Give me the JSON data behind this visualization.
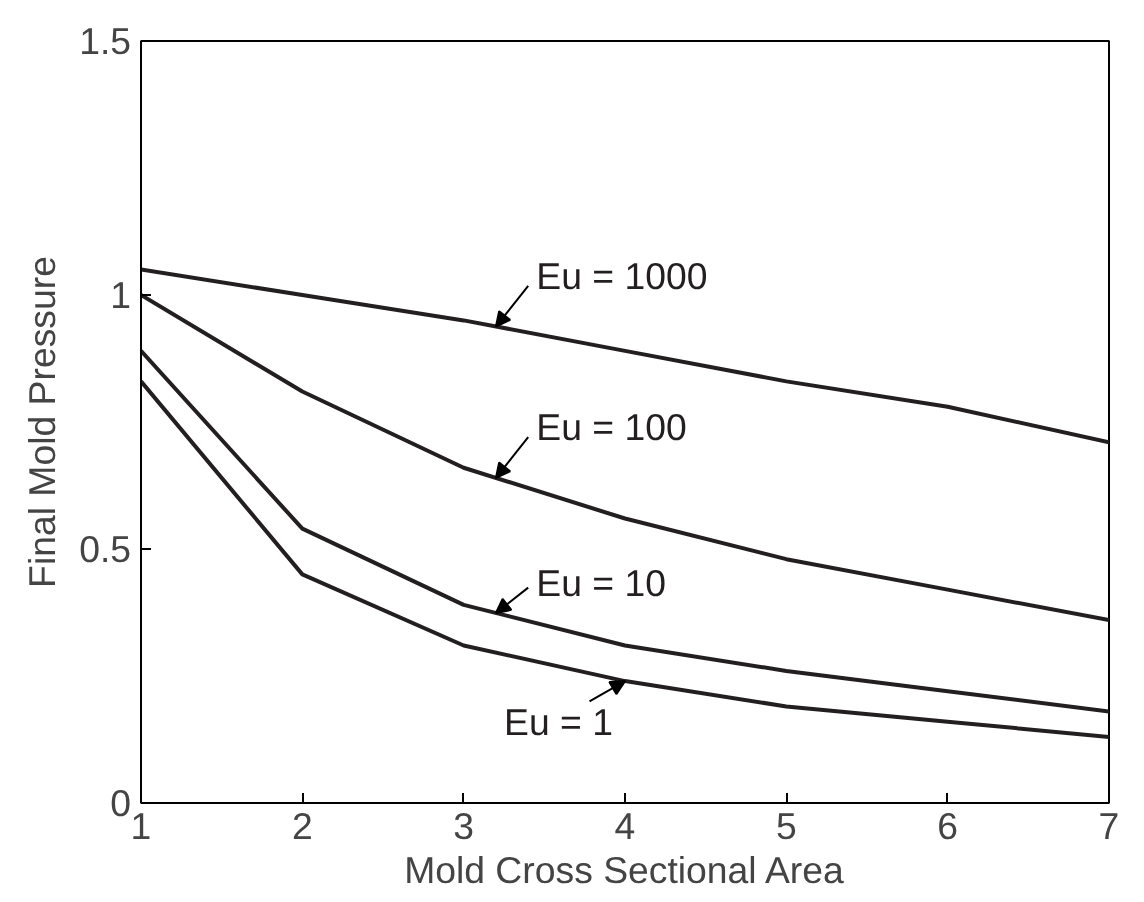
{
  "chart_data": {
    "type": "line",
    "xlabel": "Mold Cross Sectional Area",
    "ylabel": "Final Mold Pressure",
    "x": [
      1,
      2,
      3,
      4,
      5,
      6,
      7
    ],
    "series": [
      {
        "color": "#231f20",
        "values": [
          1.05,
          1.0,
          0.95,
          0.89,
          0.83,
          0.78,
          0.71
        ]
      },
      {
        "color": "#231f20",
        "values": [
          1.0,
          0.81,
          0.66,
          0.56,
          0.48,
          0.42,
          0.36
        ]
      },
      {
        "color": "#231f20",
        "values": [
          0.89,
          0.54,
          0.39,
          0.31,
          0.26,
          0.22,
          0.18
        ]
      },
      {
        "color": "#231f20",
        "values": [
          0.83,
          0.45,
          0.31,
          0.24,
          0.19,
          0.16,
          0.13
        ]
      }
    ],
    "annotations": [
      "Eu = 1000",
      "Eu = 100",
      "Eu = 10",
      "Eu = 1"
    ],
    "xlim": [
      1,
      7
    ],
    "ylim": [
      0,
      1.5
    ],
    "xticks": [
      1,
      2,
      3,
      4,
      5,
      6,
      7
    ],
    "yticks": [
      0,
      0.5,
      1,
      1.5
    ],
    "grid": false,
    "marker": "none",
    "line_style": "solid"
  }
}
